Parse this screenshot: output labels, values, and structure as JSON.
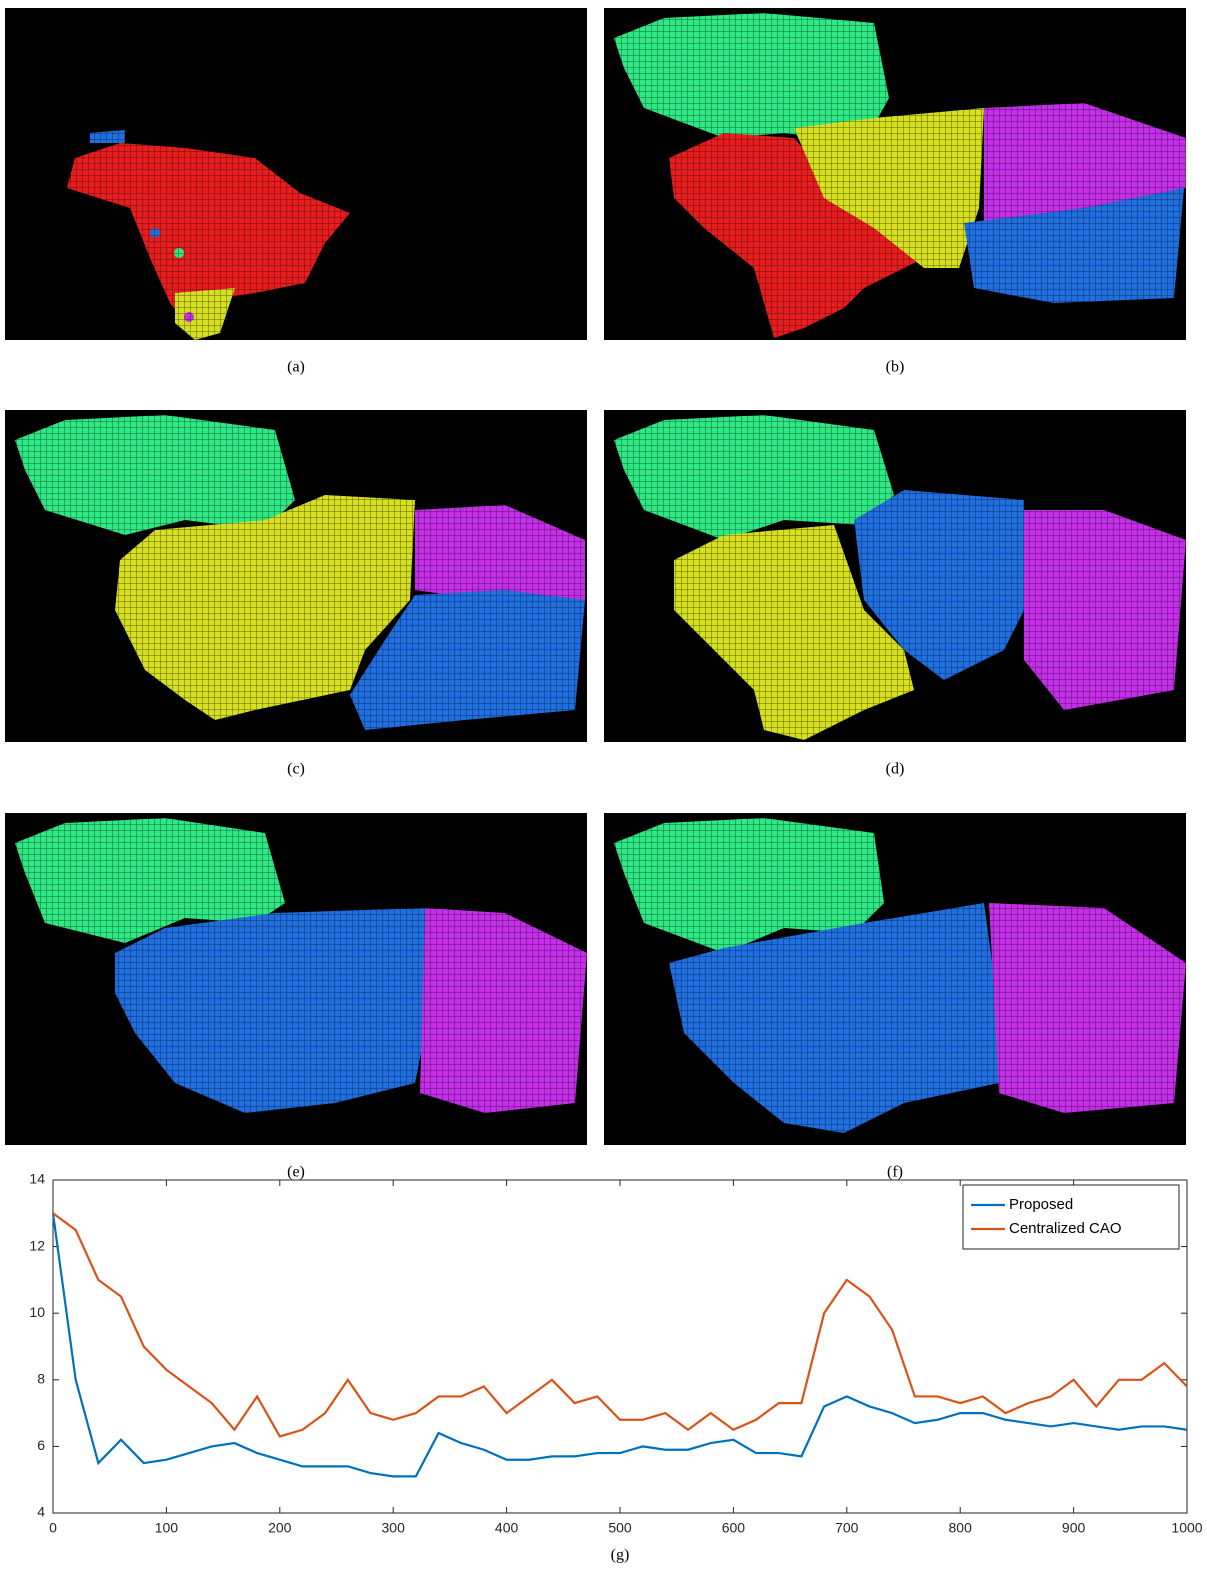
{
  "panels": [
    {
      "caption": "(a)"
    },
    {
      "caption": "(b)"
    },
    {
      "caption": "(c)"
    },
    {
      "caption": "(d)"
    },
    {
      "caption": "(e)"
    },
    {
      "caption": "(f)"
    }
  ],
  "chart_data": {
    "type": "line",
    "caption": "(g)",
    "x": [
      0,
      20,
      40,
      60,
      80,
      100,
      120,
      140,
      160,
      180,
      200,
      220,
      240,
      260,
      280,
      300,
      320,
      340,
      360,
      380,
      400,
      420,
      440,
      460,
      480,
      500,
      520,
      540,
      560,
      580,
      600,
      620,
      640,
      660,
      680,
      700,
      720,
      740,
      760,
      780,
      800,
      820,
      840,
      860,
      880,
      900,
      920,
      940,
      960,
      980,
      1000
    ],
    "series": [
      {
        "name": "Proposed",
        "color": "#0072bd",
        "values": [
          13.0,
          8.0,
          5.5,
          6.2,
          5.5,
          5.6,
          5.8,
          6.0,
          6.1,
          5.8,
          5.6,
          5.4,
          5.4,
          5.4,
          5.2,
          5.1,
          5.1,
          6.4,
          6.1,
          5.9,
          5.6,
          5.6,
          5.7,
          5.7,
          5.8,
          5.8,
          6.0,
          5.9,
          5.9,
          6.1,
          6.2,
          5.8,
          5.8,
          5.7,
          7.2,
          7.5,
          7.2,
          7.0,
          6.7,
          6.8,
          7.0,
          7.0,
          6.8,
          6.7,
          6.6,
          6.7,
          6.6,
          6.5,
          6.6,
          6.6,
          6.5
        ]
      },
      {
        "name": "Centralized CAO",
        "color": "#d95319",
        "values": [
          13.0,
          12.5,
          11.0,
          10.5,
          9.0,
          8.3,
          7.8,
          7.3,
          6.5,
          7.5,
          6.3,
          6.5,
          7.0,
          8.0,
          7.0,
          6.8,
          7.0,
          7.5,
          7.5,
          7.8,
          7.0,
          7.5,
          8.0,
          7.3,
          7.5,
          6.8,
          6.8,
          7.0,
          6.5,
          7.0,
          6.5,
          6.8,
          7.3,
          7.3,
          10.0,
          11.0,
          10.5,
          9.5,
          7.5,
          7.5,
          7.3,
          7.5,
          7.0,
          7.3,
          7.5,
          8.0,
          7.2,
          8.0,
          8.0,
          8.5,
          7.8
        ]
      }
    ],
    "xlim": [
      0,
      1000
    ],
    "xticks": [
      0,
      100,
      200,
      300,
      400,
      500,
      600,
      700,
      800,
      900,
      1000
    ],
    "ylim": [
      4,
      14
    ],
    "yticks": [
      4,
      6,
      8,
      10,
      12,
      14
    ],
    "legend": "upper right"
  }
}
